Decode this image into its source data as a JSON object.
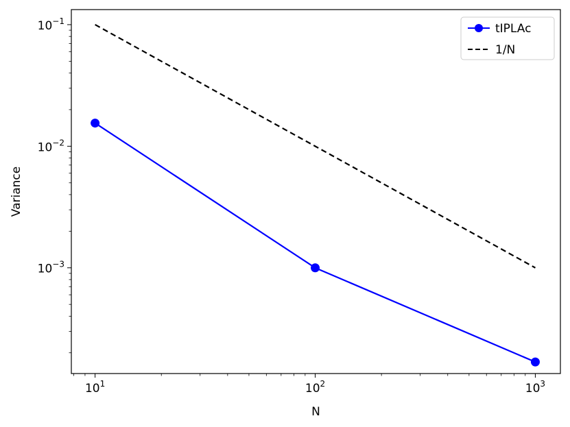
{
  "chart_data": {
    "type": "line",
    "xscale": "log",
    "yscale": "log",
    "xlabel": "N",
    "ylabel": "Variance",
    "xlim": [
      7.8,
      1300
    ],
    "ylim": [
      0.000135,
      0.133
    ],
    "x_ticks": [
      {
        "value": 10,
        "base": "10",
        "exp": "1"
      },
      {
        "value": 100,
        "base": "10",
        "exp": "2"
      },
      {
        "value": 1000,
        "base": "10",
        "exp": "3"
      }
    ],
    "y_ticks": [
      {
        "value": 0.001,
        "base": "10",
        "exp": "−3"
      },
      {
        "value": 0.01,
        "base": "10",
        "exp": "−2"
      },
      {
        "value": 0.1,
        "base": "10",
        "exp": "−1"
      }
    ],
    "series": [
      {
        "name": "tIPLAc",
        "color": "#0000ff",
        "style": "solid",
        "marker": "circle",
        "x": [
          10,
          100,
          1000
        ],
        "y": [
          0.0155,
          0.001,
          0.000168
        ]
      },
      {
        "name": "1/N",
        "color": "#000000",
        "style": "dashed",
        "marker": "none",
        "x": [
          10,
          100,
          1000
        ],
        "y": [
          0.1,
          0.01,
          0.001
        ]
      }
    ],
    "legend": {
      "position": "top-right"
    },
    "grid": false
  }
}
